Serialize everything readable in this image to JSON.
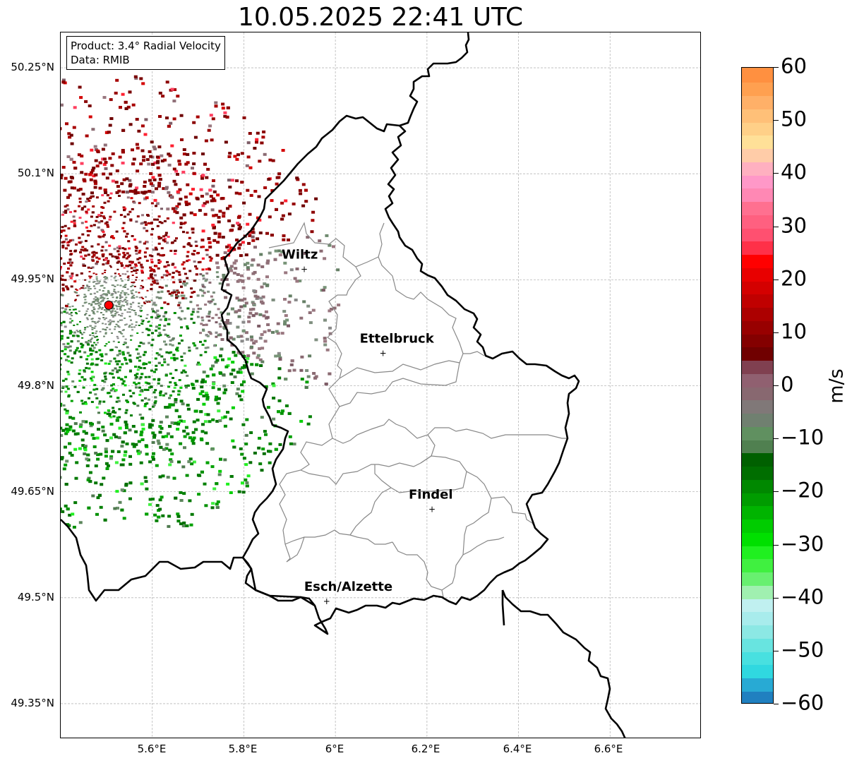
{
  "title": "10.05.2025 22:41 UTC",
  "info_box": {
    "product": "Product: 3.4° Radial Velocity",
    "data_source": "Data: RMIB"
  },
  "latitude_labels": [
    "50.25°N",
    "50.1°N",
    "49.95°N",
    "49.8°N",
    "49.65°N",
    "49.5°N",
    "49.35°N"
  ],
  "longitude_labels": [
    "5.6°E",
    "5.8°E",
    "6°E",
    "6.2°E",
    "6.4°E",
    "6.6°E"
  ],
  "colorbar": {
    "unit": "m/s",
    "min": -60,
    "max": 60,
    "tick_labels": [
      "60",
      "50",
      "40",
      "30",
      "20",
      "10",
      "0",
      "−10",
      "−20",
      "−30",
      "−40",
      "−50",
      "−60"
    ],
    "colors": [
      "#2080c0",
      "#28aad4",
      "#30d8e0",
      "#48e0e0",
      "#68e4e0",
      "#8ce8e4",
      "#a8ecec",
      "#c0f0f0",
      "#a0f0b0",
      "#68f070",
      "#40f040",
      "#20f020",
      "#00e000",
      "#00cc00",
      "#00b400",
      "#009c00",
      "#008800",
      "#006e00",
      "#006000",
      "#508050",
      "#609060",
      "#708070",
      "#807878",
      "#886870",
      "#906070",
      "#804050",
      "#700000",
      "#840000",
      "#980000",
      "#ac0000",
      "#c00000",
      "#d40000",
      "#e80000",
      "#ff0000",
      "#ff3048",
      "#ff5070",
      "#ff6080",
      "#ff7090",
      "#ff88b4",
      "#ff98c8",
      "#ffb0c0",
      "#ffcca8",
      "#ffe098",
      "#ffd088",
      "#ffc078",
      "#ffb068",
      "#ffa050",
      "#ff9040"
    ]
  },
  "cities": [
    {
      "name": "Wiltz",
      "lat": 49.966,
      "lon": 5.932
    },
    {
      "name": "Ettelbruck",
      "lat": 49.847,
      "lon": 6.104
    },
    {
      "name": "Findel",
      "lat": 49.626,
      "lon": 6.211
    },
    {
      "name": "Esch/Alzette",
      "lat": 49.496,
      "lon": 5.981
    }
  ],
  "radar_site": {
    "lat": 49.914,
    "lon": 5.505
  },
  "map_extent": {
    "lon_min": 5.4,
    "lon_max": 6.8,
    "lat_min": 49.3,
    "lat_max": 50.3
  }
}
